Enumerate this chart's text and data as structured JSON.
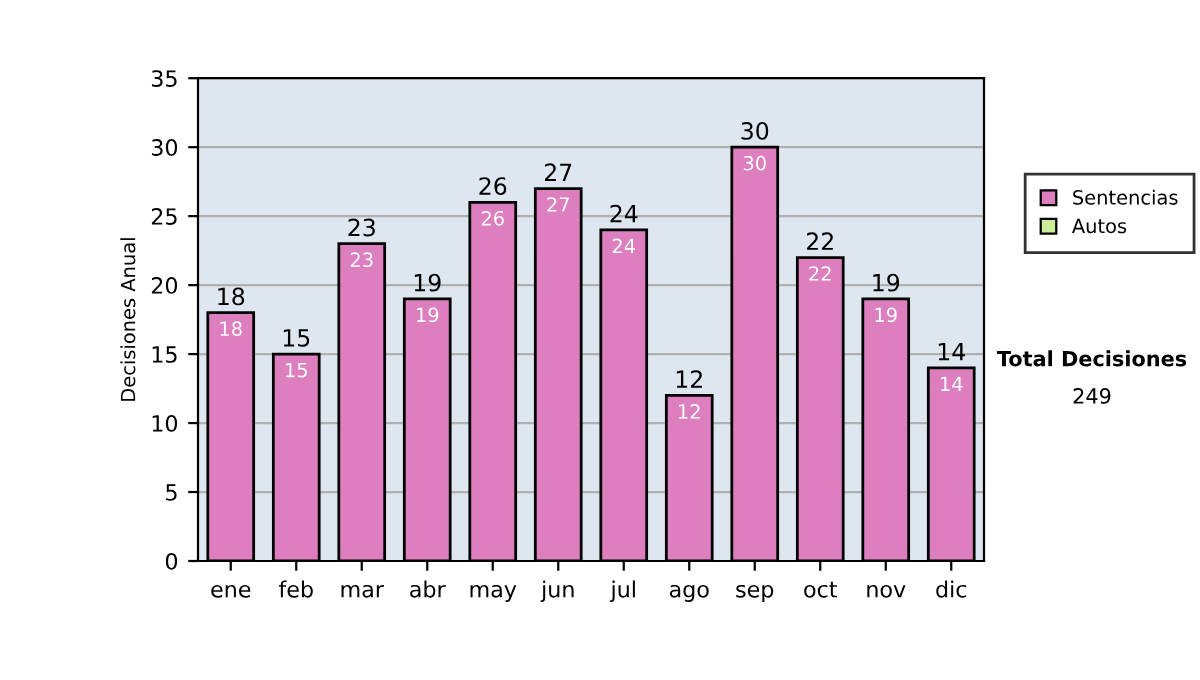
{
  "chart_data": {
    "type": "bar",
    "ylabel": "Decisiones Anual",
    "categories": [
      "ene",
      "feb",
      "mar",
      "abr",
      "may",
      "jun",
      "jul",
      "ago",
      "sep",
      "oct",
      "nov",
      "dic"
    ],
    "series": [
      {
        "name": "Sentencias",
        "color": "#dd7fbf",
        "values": [
          18,
          15,
          23,
          19,
          26,
          27,
          24,
          12,
          30,
          22,
          19,
          14
        ],
        "value_labels": [
          "18",
          "15",
          "23",
          "19",
          "26",
          "27",
          "24",
          "12",
          "30",
          "22",
          "19",
          "14"
        ]
      },
      {
        "name": "Autos",
        "color": "#ccee99",
        "values": [
          0,
          0,
          0,
          0,
          0,
          0,
          0,
          0,
          0,
          0,
          0,
          0
        ]
      }
    ],
    "stacked": true,
    "totals": [
      "18",
      "15",
      "23",
      "19",
      "26",
      "27",
      "24",
      "12",
      "30",
      "22",
      "19",
      "14"
    ],
    "ylim": [
      0,
      35
    ],
    "yticks": [
      0,
      5,
      10,
      15,
      20,
      25,
      30,
      35
    ],
    "grid": "y",
    "legend": "right",
    "annotations": [
      "Total Decisiones",
      "249"
    ]
  }
}
